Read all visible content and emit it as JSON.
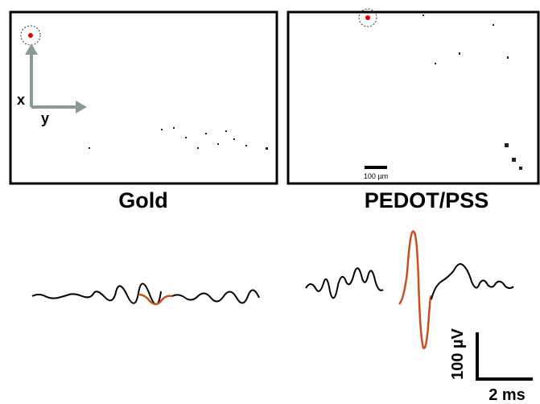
{
  "panels": [
    {
      "label": "Gold",
      "axis_x": "x",
      "axis_y": "y"
    },
    {
      "label": "PEDOT/PSS",
      "scale_bar": "100 µm"
    }
  ],
  "traces": {
    "scale_voltage": "100 µV",
    "scale_time": "2 ms"
  }
}
